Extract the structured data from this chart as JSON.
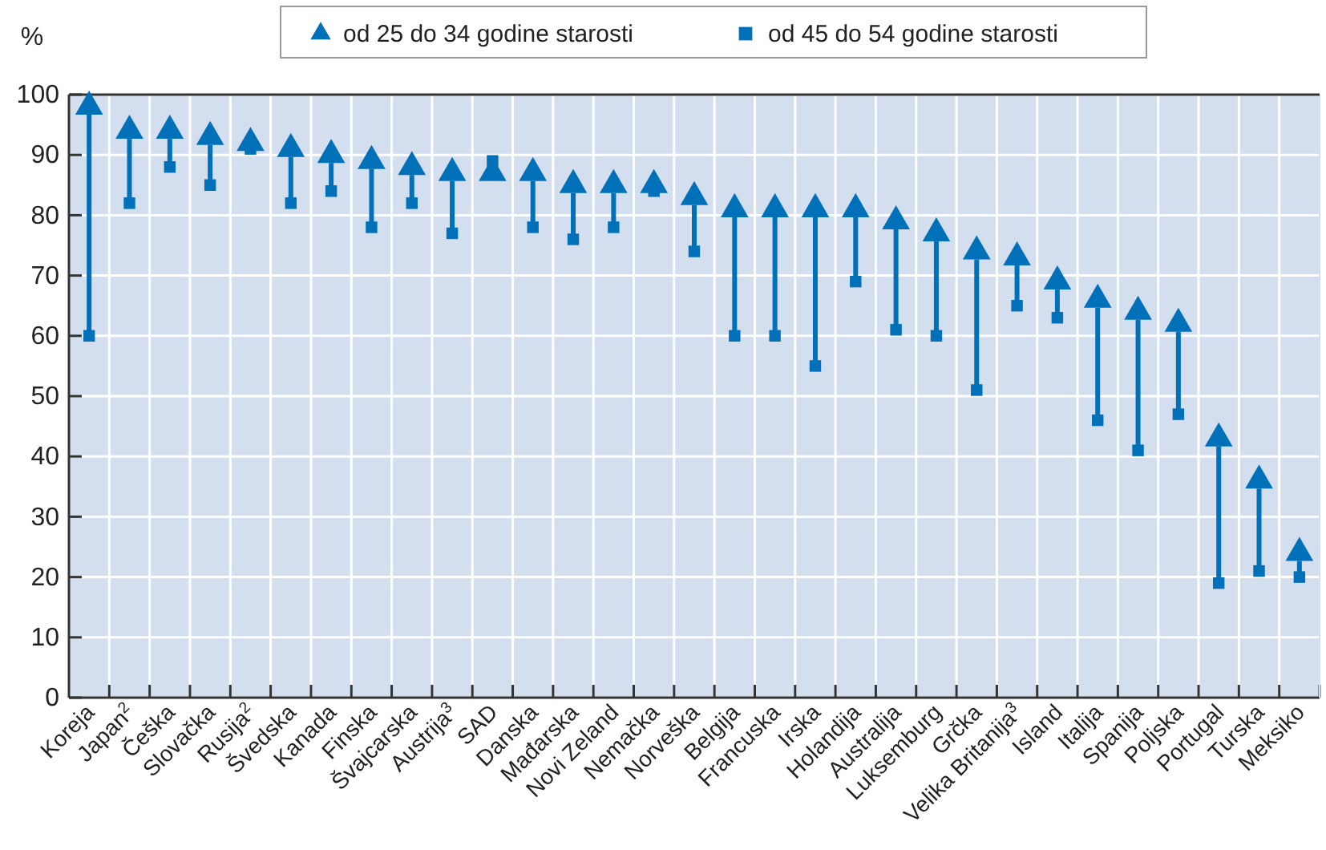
{
  "chart_data": {
    "type": "scatter",
    "ylabel": "%",
    "categories": [
      "Koreja",
      "Japan$^{2}$",
      "Češka",
      "Slovačka",
      "Rusija$^{2}$",
      "Švedska",
      "Kanada",
      "Finska",
      "Švajcarska",
      "Austrija$^{3}$",
      "SAD",
      "Danska",
      "Mađarska",
      "Novi Zeland",
      "Nemačka",
      "Norveška",
      "Belgija",
      "Francuska",
      "Irska",
      "Holandija",
      "Australija",
      "Luksemburg",
      "Grčka",
      "Velika Britanija$^{3}$",
      "Island",
      "Italija",
      "Spanija",
      "Poljska",
      "Portugal",
      "Turska",
      "Meksiko"
    ],
    "series": [
      {
        "name": "od 25 do 34 godine starosti",
        "color": "#0070b8",
        "marker": "triangle",
        "values": [
          98,
          94,
          94,
          93,
          92,
          91,
          90,
          89,
          88,
          87,
          87,
          87,
          85,
          85,
          85,
          83,
          81,
          81,
          81,
          81,
          79,
          77,
          74,
          73,
          69,
          66,
          64,
          62,
          43,
          36,
          24
        ]
      },
      {
        "name": "od 45 do 54 godine starosti",
        "color": "#0070b8",
        "marker": "square",
        "values": [
          60,
          82,
          88,
          85,
          91,
          82,
          84,
          78,
          82,
          77,
          89,
          78,
          76,
          78,
          84,
          74,
          60,
          60,
          55,
          69,
          61,
          60,
          51,
          65,
          63,
          46,
          41,
          47,
          19,
          21,
          20
        ]
      }
    ],
    "ylim": [
      0,
      100
    ],
    "yticks": [
      0,
      10,
      20,
      30,
      40,
      50,
      60,
      70,
      80,
      90,
      100
    ],
    "grid": true,
    "legend": "top"
  }
}
